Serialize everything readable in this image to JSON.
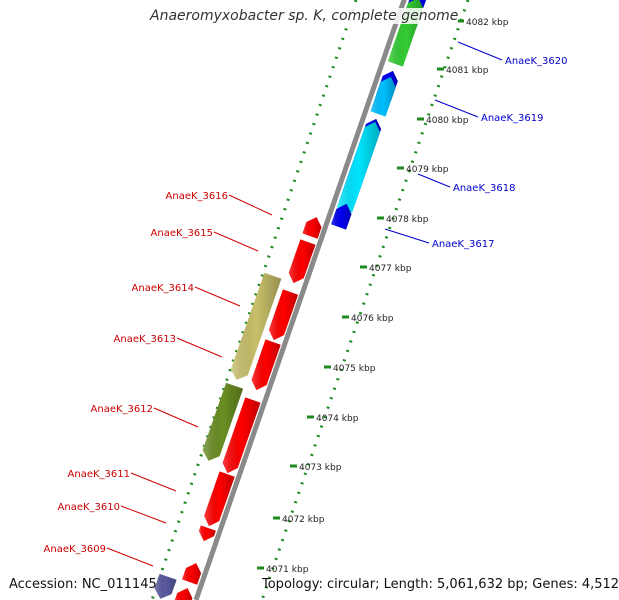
{
  "title": "Anaeromyxobacter sp. K, complete genome",
  "footer": {
    "accession": "Accession: NC_011145",
    "topology": "Topology: circular; Length: 5,061,632 bp; Genes: 4,512"
  },
  "colors": {
    "backbone": "#8a8a8a",
    "ticks": "#1f8a1f",
    "forward_label": "#0000cc",
    "reverse_label": "#cc0000",
    "red": "#ff0000",
    "blue": "#0000ee",
    "cyan": "#00e5ff",
    "sky": "#00bfff",
    "green": "#33cc33",
    "olive": "#6b8e23",
    "khaki": "#c8bf6a",
    "slate": "#5a5aa0"
  },
  "scale_labels": [
    "4082 kbp",
    "4081 kbp",
    "4080 kbp",
    "4079 kbp",
    "4078 kbp",
    "4077 kbp",
    "4076 kbp",
    "4075 kbp",
    "4074 kbp",
    "4073 kbp",
    "4072 kbp",
    "4071 kbp"
  ],
  "forward_genes": [
    "AnaeK_3620",
    "AnaeK_3619",
    "AnaeK_3618",
    "AnaeK_3617"
  ],
  "reverse_genes": [
    "AnaeK_3616",
    "AnaeK_3615",
    "AnaeK_3614",
    "AnaeK_3613",
    "AnaeK_3612",
    "AnaeK_3611",
    "AnaeK_3610",
    "AnaeK_3609"
  ]
}
